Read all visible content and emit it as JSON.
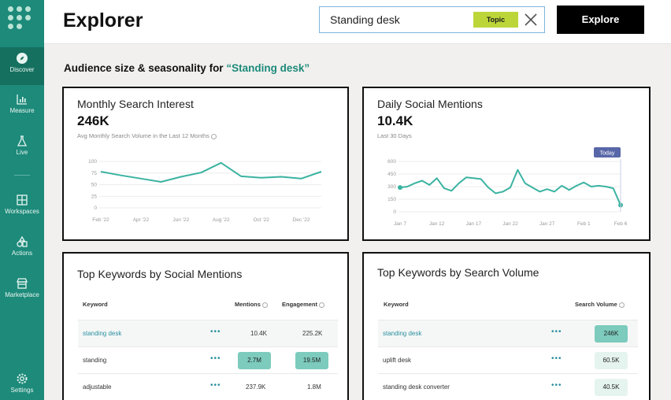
{
  "sidebar": {
    "items": [
      {
        "label": "Discover",
        "icon": "compass-icon"
      },
      {
        "label": "Measure",
        "icon": "bar-chart-icon"
      },
      {
        "label": "Live",
        "icon": "flask-icon"
      },
      {
        "label": "Workspaces",
        "icon": "grid-icon"
      },
      {
        "label": "Actions",
        "icon": "shapes-icon"
      },
      {
        "label": "Marketplace",
        "icon": "store-icon"
      },
      {
        "label": "Settings",
        "icon": "gear-icon"
      }
    ]
  },
  "header": {
    "title": "Explorer",
    "search_value": "Standing desk",
    "badge": "Topic",
    "button": "Explore"
  },
  "section": {
    "prefix": "Audience size & seasonality for ",
    "query": "“Standing desk”"
  },
  "monthly": {
    "title": "Monthly Search Interest",
    "value": "246K",
    "subtitle": "Avg Monthly Search Volume in the Last 12 Months",
    "chart_data": {
      "type": "line",
      "x": [
        "Feb '22",
        "Mar '22",
        "Apr '22",
        "May '22",
        "Jun '22",
        "Jul '22",
        "Aug '22",
        "Sep '22",
        "Oct '22",
        "Nov '22",
        "Dec '22",
        "Jan '23"
      ],
      "y": [
        78,
        70,
        63,
        56,
        67,
        76,
        97,
        68,
        65,
        67,
        63,
        78
      ],
      "x_ticks": [
        "Feb '22",
        "Apr '22",
        "Jun '22",
        "Aug '22",
        "Oct '22",
        "Dec '22"
      ],
      "y_ticks": [
        0,
        25,
        50,
        75,
        100
      ],
      "ylim": [
        0,
        100
      ],
      "color": "#3bb3a2"
    }
  },
  "daily": {
    "title": "Daily Social Mentions",
    "value": "10.4K",
    "subtitle": "Last 30 Days",
    "today_label": "Today",
    "chart_data": {
      "type": "line",
      "x": [
        "Jan 7",
        "Jan 8",
        "Jan 9",
        "Jan 10",
        "Jan 11",
        "Jan 12",
        "Jan 13",
        "Jan 14",
        "Jan 15",
        "Jan 16",
        "Jan 17",
        "Jan 18",
        "Jan 19",
        "Jan 20",
        "Jan 21",
        "Jan 22",
        "Jan 23",
        "Jan 24",
        "Jan 25",
        "Jan 26",
        "Jan 27",
        "Jan 28",
        "Jan 29",
        "Jan 30",
        "Jan 31",
        "Feb 1",
        "Feb 2",
        "Feb 3",
        "Feb 4",
        "Feb 5",
        "Feb 6"
      ],
      "y": [
        290,
        300,
        340,
        370,
        320,
        400,
        280,
        250,
        340,
        410,
        400,
        390,
        290,
        220,
        240,
        290,
        500,
        340,
        290,
        240,
        270,
        240,
        310,
        260,
        310,
        350,
        300,
        310,
        300,
        280,
        80
      ],
      "x_ticks": [
        "Jan 7",
        "Jan 12",
        "Jan 17",
        "Jan 22",
        "Jan 27",
        "Feb 1",
        "Feb 6"
      ],
      "y_ticks": [
        0,
        150,
        300,
        450,
        600
      ],
      "ylim": [
        0,
        600
      ],
      "color": "#3bb3a2"
    }
  },
  "social_table": {
    "title": "Top Keywords by Social Mentions",
    "headers": {
      "keyword": "Keyword",
      "mentions": "Mentions",
      "engagement": "Engagement"
    },
    "rows": [
      {
        "keyword": "standing desk",
        "mentions": "10.4K",
        "engagement": "225.2K",
        "mentions_hl": false,
        "engagement_hl": false
      },
      {
        "keyword": "standing",
        "mentions": "2.7M",
        "engagement": "19.5M",
        "mentions_hl": true,
        "engagement_hl": true
      },
      {
        "keyword": "adjustable",
        "mentions": "237.9K",
        "engagement": "1.8M",
        "mentions_hl": false,
        "engagement_hl": false
      }
    ]
  },
  "search_table": {
    "title": "Top Keywords by Search Volume",
    "headers": {
      "keyword": "Keyword",
      "volume": "Search Volume"
    },
    "rows": [
      {
        "keyword": "standing desk",
        "volume": "246K",
        "volume_level": "high"
      },
      {
        "keyword": "uplift desk",
        "volume": "60.5K",
        "volume_level": "low"
      },
      {
        "keyword": "standing desk converter",
        "volume": "40.5K",
        "volume_level": "low"
      }
    ]
  },
  "colors": {
    "sidebar": "#1d8a7a",
    "accent": "#1d8a7a",
    "line": "#3bb3a2",
    "badge": "#bcd63a",
    "pill_high": "#7ccbbd",
    "pill_low": "#e6f4ef"
  }
}
